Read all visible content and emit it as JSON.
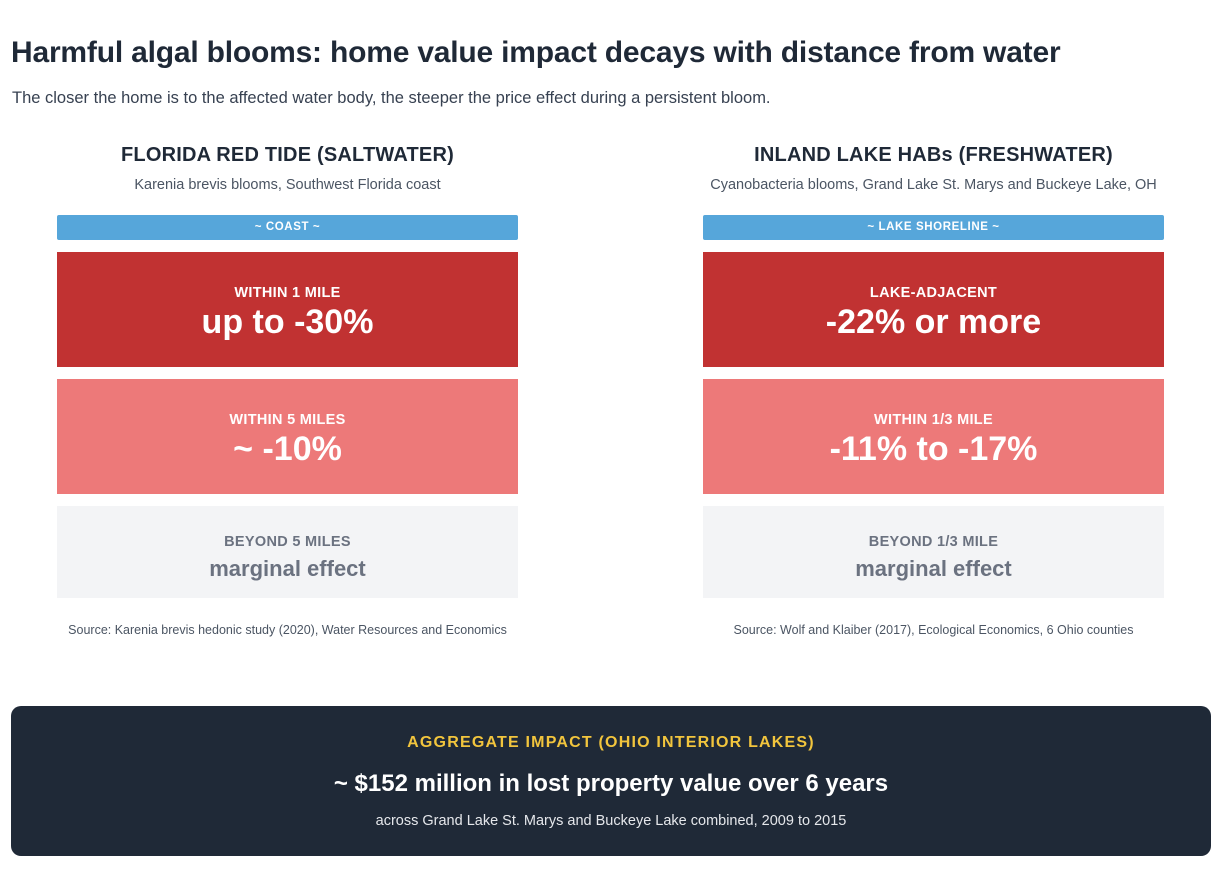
{
  "title": "Harmful algal blooms: home value impact decays with distance from water",
  "subtitle": "The closer the home is to the affected water body, the steeper the price effect during a persistent bloom.",
  "panels": [
    {
      "title": "FLORIDA RED TIDE (SALTWATER)",
      "subtitle": "Karenia brevis blooms, Southwest Florida coast",
      "water_label": "~ COAST ~",
      "bands": [
        {
          "label": "WITHIN 1 MILE",
          "value": "up to -30%"
        },
        {
          "label": "WITHIN 5 MILES",
          "value": "~ -10%"
        },
        {
          "label": "BEYOND 5 MILES",
          "value": "marginal effect"
        }
      ],
      "source": "Source: Karenia brevis hedonic study (2020), Water Resources and Economics"
    },
    {
      "title": "INLAND LAKE HABs (FRESHWATER)",
      "subtitle": "Cyanobacteria blooms, Grand Lake St. Marys and Buckeye Lake, OH",
      "water_label": "~ LAKE SHORELINE ~",
      "bands": [
        {
          "label": "LAKE-ADJACENT",
          "value": "-22% or more"
        },
        {
          "label": "WITHIN 1/3 MILE",
          "value": "-11% to -17%"
        },
        {
          "label": "BEYOND 1/3 MILE",
          "value": "marginal effect"
        }
      ],
      "source": "Source: Wolf and Klaiber (2017), Ecological Economics, 6 Ohio counties"
    }
  ],
  "aggregate": {
    "label": "AGGREGATE IMPACT (OHIO INTERIOR LAKES)",
    "value": "~ $152 million in lost property value over 6 years",
    "note": "across Grand Lake St. Marys and Buckeye Lake combined, 2009 to 2015"
  },
  "colors": {
    "water": "#56a6da",
    "band_near": "#c13232",
    "band_mid": "#ed7979",
    "band_far": "#f3f4f6",
    "aggregate_bg": "#1f2937",
    "aggregate_label": "#f2c53d"
  }
}
